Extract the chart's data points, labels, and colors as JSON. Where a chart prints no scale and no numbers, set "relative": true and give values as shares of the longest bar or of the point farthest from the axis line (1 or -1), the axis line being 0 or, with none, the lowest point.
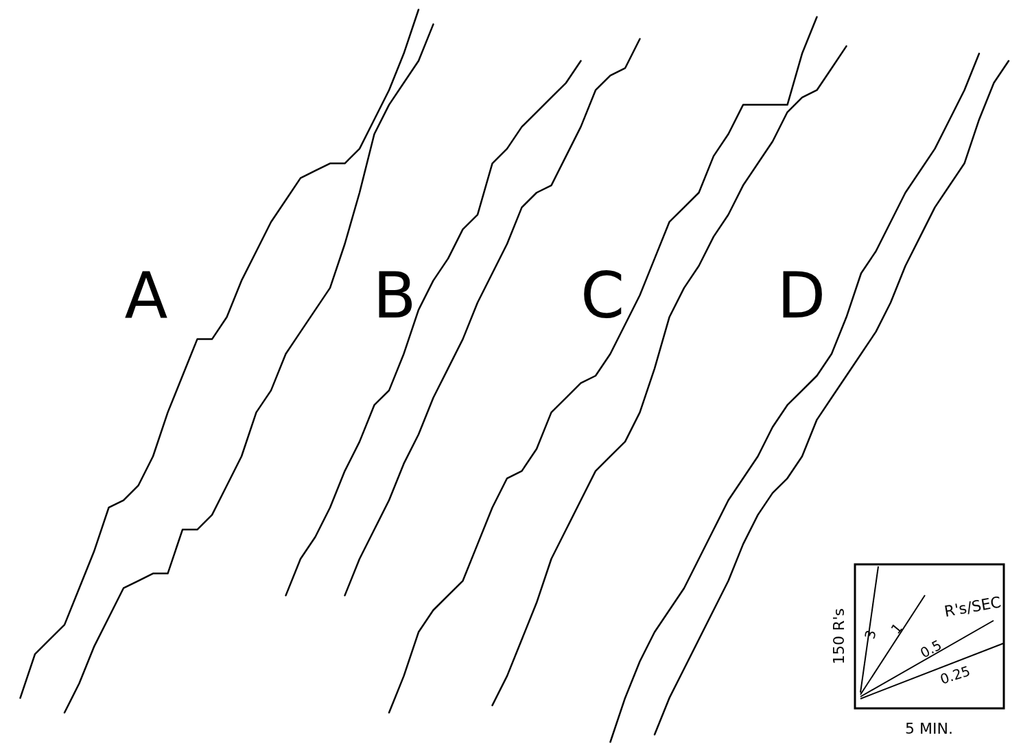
{
  "chart_data": {
    "type": "line",
    "relative": true,
    "categories": [
      null,
      null,
      null,
      null,
      null,
      null,
      null,
      null,
      null,
      null,
      null,
      null,
      null,
      null,
      null,
      null,
      null,
      null,
      null,
      null,
      null,
      null,
      null,
      null,
      null,
      null,
      null,
      null,
      null,
      null,
      null,
      null,
      null,
      null,
      null,
      null,
      null,
      null,
      null,
      null,
      null,
      null,
      null,
      null,
      null,
      null,
      null,
      null,
      null,
      null,
      null,
      null,
      null,
      null,
      null,
      null,
      null,
      null,
      null,
      null,
      null,
      null,
      null,
      null,
      null,
      null,
      null,
      null,
      null,
      null
    ],
    "annotations": [
      "A",
      "B",
      "C",
      "D",
      "R's/SEC",
      "3",
      "1",
      "0.5",
      "0.25",
      "150 R's",
      "5 MIN."
    ],
    "series": [
      {
        "color": "#000000",
        "values": [
          null,
          0.06,
          0.12,
          0.14,
          0.16,
          0.21,
          0.26,
          0.32,
          0.33,
          0.35,
          0.39,
          0.45,
          0.5,
          0.55,
          0.55,
          0.58,
          0.63,
          0.67,
          0.71,
          0.74,
          0.77,
          0.78,
          0.79,
          0.79,
          0.81,
          0.85,
          0.89,
          0.94,
          1.0,
          null,
          null,
          null,
          null,
          null,
          null,
          null,
          null,
          null,
          null,
          null,
          null,
          null,
          null,
          null,
          null,
          null,
          null,
          null,
          null,
          null,
          null,
          null,
          null,
          null,
          null,
          null,
          null,
          null,
          null,
          null,
          null,
          null,
          null,
          null,
          null,
          null,
          null,
          null,
          null,
          null
        ]
      },
      {
        "color": "#000000",
        "values": [
          null,
          null,
          null,
          null,
          0.04,
          0.08,
          0.13,
          0.17,
          0.21,
          0.22,
          0.23,
          0.23,
          0.29,
          0.29,
          0.31,
          0.35,
          0.39,
          0.45,
          0.48,
          0.53,
          0.56,
          0.59,
          0.62,
          0.68,
          0.75,
          0.83,
          0.87,
          0.9,
          0.93,
          0.98,
          null,
          null,
          null,
          null,
          null,
          null,
          null,
          null,
          null,
          null,
          null,
          null,
          null,
          null,
          null,
          null,
          null,
          null,
          null,
          null,
          null,
          null,
          null,
          null,
          null,
          null,
          null,
          null,
          null,
          null,
          null,
          null,
          null,
          null,
          null,
          null,
          null,
          null,
          null,
          null
        ]
      },
      {
        "color": "#000000",
        "values": [
          null,
          null,
          null,
          null,
          null,
          null,
          null,
          null,
          null,
          null,
          null,
          null,
          null,
          null,
          null,
          null,
          null,
          null,
          null,
          0.2,
          0.25,
          0.28,
          0.32,
          0.37,
          0.41,
          0.46,
          0.48,
          0.53,
          0.59,
          0.63,
          0.66,
          0.7,
          0.72,
          0.79,
          0.81,
          0.84,
          0.86,
          0.88,
          0.9,
          0.93,
          null,
          null,
          null,
          null,
          null,
          null,
          null,
          null,
          null,
          null,
          null,
          null,
          null,
          null,
          null,
          null,
          null,
          null,
          null,
          null,
          null,
          null,
          null,
          null,
          null,
          null,
          null,
          null,
          null,
          null
        ]
      },
      {
        "color": "#000000",
        "values": [
          null,
          null,
          null,
          null,
          null,
          null,
          null,
          null,
          null,
          null,
          null,
          null,
          null,
          null,
          null,
          null,
          null,
          null,
          null,
          null,
          null,
          null,
          null,
          0.2,
          0.25,
          0.29,
          0.33,
          0.38,
          0.42,
          0.47,
          0.51,
          0.55,
          0.6,
          0.64,
          0.68,
          0.73,
          0.75,
          0.76,
          0.8,
          0.84,
          0.89,
          0.91,
          0.92,
          0.96,
          null,
          null,
          null,
          null,
          null,
          null,
          null,
          null,
          null,
          null,
          null,
          null,
          null,
          null,
          null,
          null,
          null,
          null,
          null,
          null,
          null,
          null,
          null,
          null,
          null,
          null
        ]
      },
      {
        "color": "#000000",
        "values": [
          null,
          null,
          null,
          null,
          null,
          null,
          null,
          null,
          null,
          null,
          null,
          null,
          null,
          null,
          null,
          null,
          null,
          null,
          null,
          null,
          null,
          null,
          null,
          null,
          null,
          null,
          0.04,
          0.09,
          0.15,
          0.18,
          0.2,
          0.22,
          0.27,
          0.32,
          0.36,
          0.37,
          0.4,
          0.45,
          0.47,
          0.49,
          0.5,
          0.53,
          0.57,
          0.61,
          0.66,
          0.71,
          0.73,
          0.75,
          0.8,
          0.83,
          0.87,
          0.87,
          0.87,
          0.87,
          0.94,
          0.99,
          null,
          null,
          null,
          null,
          null,
          null,
          null,
          null,
          null,
          null,
          null,
          null,
          null,
          null
        ]
      },
      {
        "color": "#000000",
        "values": [
          null,
          null,
          null,
          null,
          null,
          null,
          null,
          null,
          null,
          null,
          null,
          null,
          null,
          null,
          null,
          null,
          null,
          null,
          null,
          null,
          null,
          null,
          null,
          null,
          null,
          null,
          null,
          null,
          null,
          null,
          null,
          null,
          null,
          0.05,
          0.09,
          0.14,
          0.19,
          0.25,
          0.29,
          0.33,
          0.37,
          0.39,
          0.41,
          0.45,
          0.51,
          0.58,
          0.62,
          0.65,
          0.69,
          0.72,
          0.76,
          0.79,
          0.82,
          0.86,
          0.88,
          0.89,
          0.92,
          0.95,
          null,
          null,
          null,
          null,
          null,
          null,
          null,
          null,
          null,
          null,
          null,
          null
        ]
      },
      {
        "color": "#000000",
        "values": [
          null,
          null,
          null,
          null,
          null,
          null,
          null,
          null,
          null,
          null,
          null,
          null,
          null,
          null,
          null,
          null,
          null,
          null,
          null,
          null,
          null,
          null,
          null,
          null,
          null,
          null,
          null,
          null,
          null,
          null,
          null,
          null,
          null,
          null,
          null,
          null,
          null,
          null,
          null,
          null,
          null,
          0.0,
          0.06,
          0.11,
          0.15,
          0.18,
          0.21,
          0.25,
          0.29,
          0.33,
          0.36,
          0.39,
          0.43,
          0.46,
          0.48,
          0.5,
          0.53,
          0.58,
          0.64,
          0.67,
          0.71,
          0.75,
          0.78,
          0.81,
          0.85,
          0.89,
          0.94,
          null,
          null,
          null
        ]
      },
      {
        "color": "#000000",
        "values": [
          null,
          null,
          null,
          null,
          null,
          null,
          null,
          null,
          null,
          null,
          null,
          null,
          null,
          null,
          null,
          null,
          null,
          null,
          null,
          null,
          null,
          null,
          null,
          null,
          null,
          null,
          null,
          null,
          null,
          null,
          null,
          null,
          null,
          null,
          null,
          null,
          null,
          null,
          null,
          null,
          null,
          null,
          null,
          null,
          0.01,
          0.06,
          0.1,
          0.14,
          0.18,
          0.22,
          0.27,
          0.31,
          0.34,
          0.36,
          0.39,
          0.44,
          0.47,
          0.5,
          0.53,
          0.56,
          0.6,
          0.65,
          0.69,
          0.73,
          0.76,
          0.79,
          0.85,
          0.9,
          0.93,
          null
        ]
      }
    ]
  }
}
